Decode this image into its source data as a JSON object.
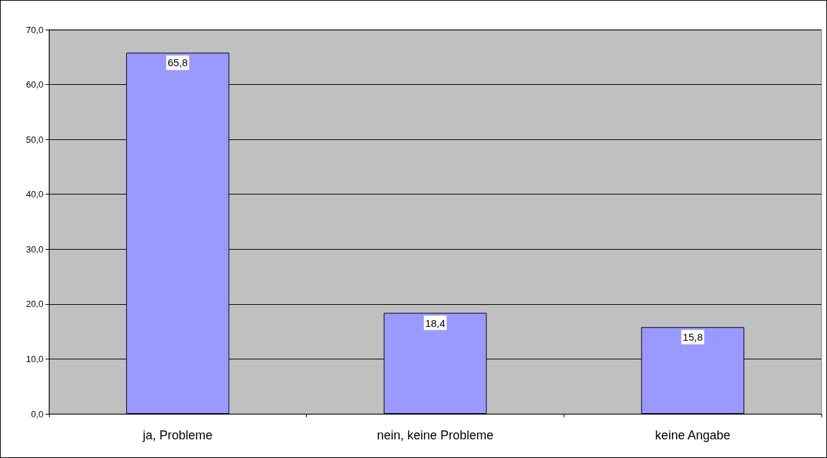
{
  "chart_data": {
    "type": "bar",
    "categories": [
      "ja, Probleme",
      "nein, keine Probleme",
      "keine Angabe"
    ],
    "values": [
      65.8,
      18.4,
      15.8
    ],
    "value_labels": [
      "65,8",
      "18,4",
      "15,8"
    ],
    "color": "#9999ff",
    "ylim": [
      0,
      70
    ],
    "yticks": [
      {
        "value": 0,
        "label": "0,0"
      },
      {
        "value": 10,
        "label": "10,0"
      },
      {
        "value": 20,
        "label": "20,0"
      },
      {
        "value": 30,
        "label": "30,0"
      },
      {
        "value": 40,
        "label": "40,0"
      },
      {
        "value": 50,
        "label": "50,0"
      },
      {
        "value": 60,
        "label": "60,0"
      },
      {
        "value": 70,
        "label": "70,0"
      }
    ],
    "grid": true
  }
}
